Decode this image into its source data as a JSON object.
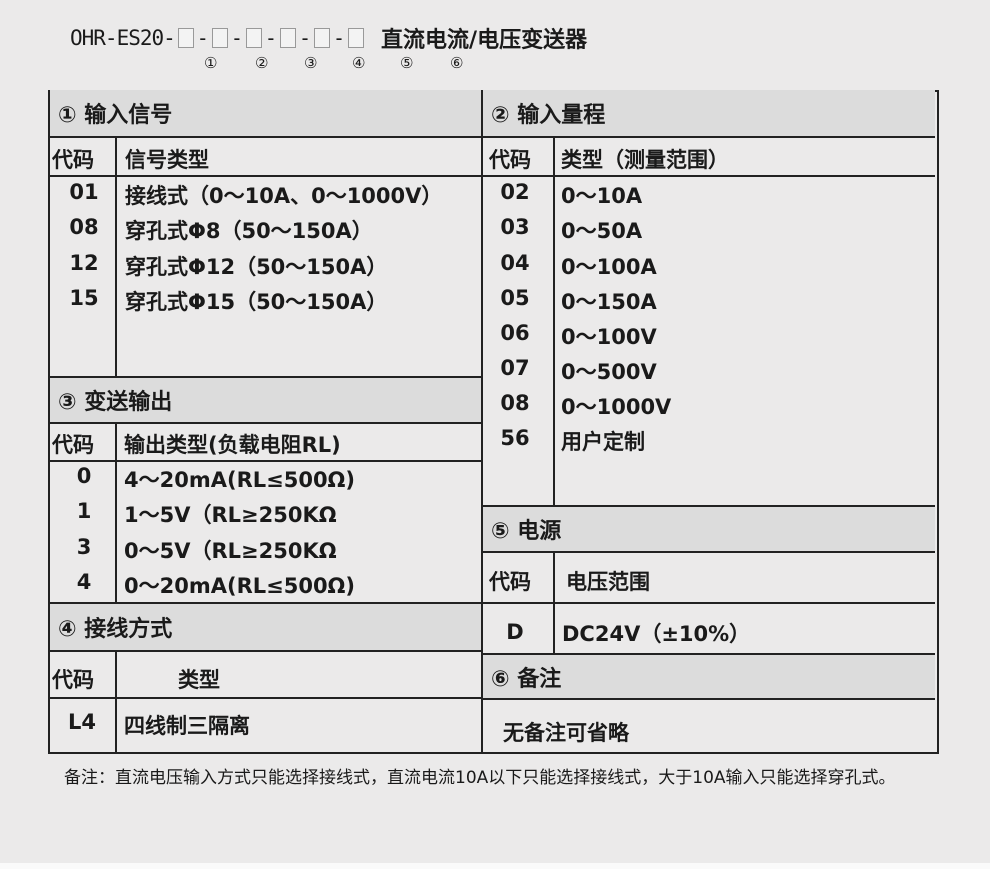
{
  "title": {
    "model": "OHR-ES20-",
    "product": "直流电流/电压变送器",
    "slot_numbers": [
      "①",
      "②",
      "③",
      "④",
      "⑤",
      "⑥"
    ]
  },
  "input_signal": {
    "header": "① 输入信号",
    "col_code": "代码",
    "col_type": "信号类型",
    "rows": [
      {
        "code": "01",
        "type": "接线式（0～10A、0～1000V）"
      },
      {
        "code": "08",
        "type": "穿孔式Φ8（50～150A）"
      },
      {
        "code": "12",
        "type": "穿孔式Φ12（50～150A）"
      },
      {
        "code": "15",
        "type": "穿孔式Φ15（50～150A）"
      }
    ]
  },
  "input_range": {
    "header": "② 输入量程",
    "col_code": "代码",
    "col_type": "类型（测量范围）",
    "rows": [
      {
        "code": "02",
        "type": "0～10A"
      },
      {
        "code": "03",
        "type": "0～50A"
      },
      {
        "code": "04",
        "type": "0～100A"
      },
      {
        "code": "05",
        "type": "0～150A"
      },
      {
        "code": "06",
        "type": "0～100V"
      },
      {
        "code": "07",
        "type": "0～500V"
      },
      {
        "code": "08",
        "type": "0～1000V"
      },
      {
        "code": "56",
        "type": "用户定制"
      }
    ]
  },
  "output": {
    "header": "③ 变送输出",
    "col_code": "代码",
    "col_type": "输出类型(负载电阻RL)",
    "rows": [
      {
        "code": "0",
        "type": "4～20mA(RL≤500Ω)"
      },
      {
        "code": "1",
        "type": "1～5V（RL≥250KΩ"
      },
      {
        "code": "3",
        "type": "0～5V（RL≥250KΩ"
      },
      {
        "code": "4",
        "type": "0～20mA(RL≤500Ω)"
      }
    ]
  },
  "wiring": {
    "header": "④ 接线方式",
    "col_code": "代码",
    "col_type": "类型",
    "rows": [
      {
        "code": "L4",
        "type": "四线制三隔离"
      }
    ]
  },
  "power": {
    "header": "⑤ 电源",
    "col_code": "代码",
    "col_type": "电压范围",
    "rows": [
      {
        "code": "D",
        "type": "DC24V（±10%）"
      }
    ]
  },
  "remarks": {
    "header": "⑥ 备注",
    "text": "无备注可省略"
  },
  "footnote": "备注：直流电压输入方式只能选择接线式，直流电流10A以下只能选择接线式，大于10A输入只能选择穿孔式。"
}
